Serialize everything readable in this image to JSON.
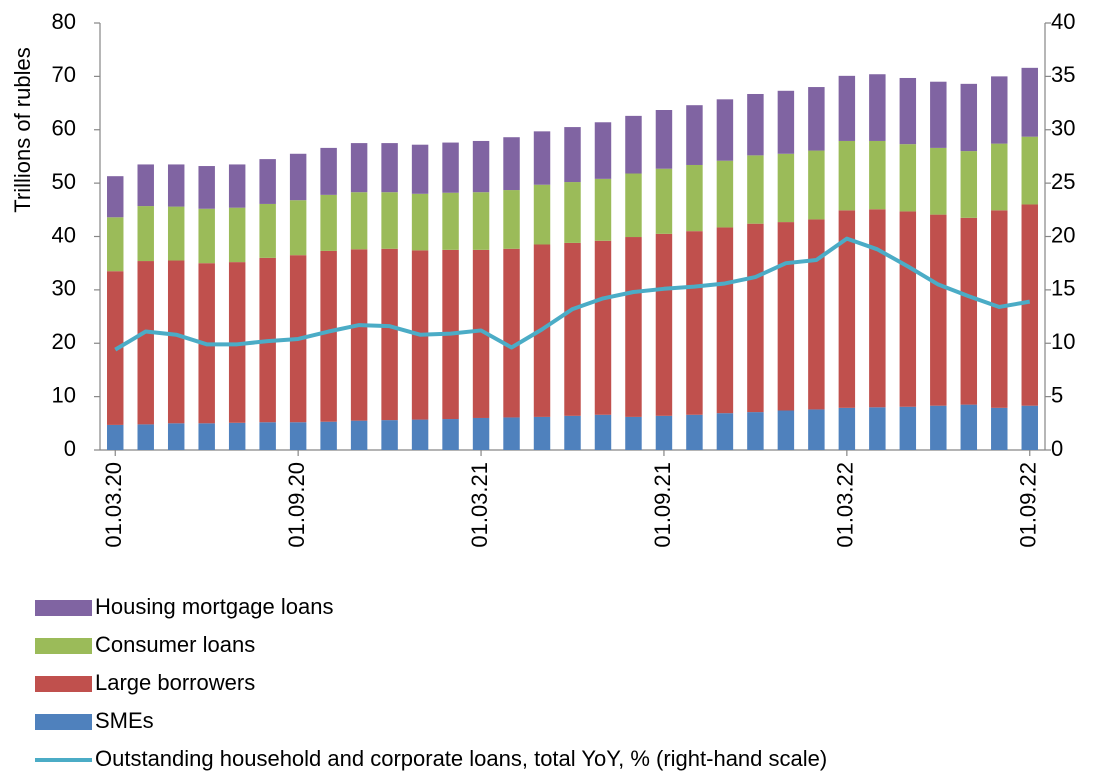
{
  "chart_data": {
    "type": "bar",
    "y_label": "Trillions of rubles",
    "categories": [
      "01.03.20",
      null,
      null,
      null,
      null,
      null,
      "01.09.20",
      null,
      null,
      null,
      null,
      null,
      "01.03.21",
      null,
      null,
      null,
      null,
      null,
      "01.09.21",
      null,
      null,
      null,
      null,
      null,
      "01.03.22",
      null,
      null,
      null,
      null,
      null,
      "01.09.22"
    ],
    "stacked": true,
    "series": [
      {
        "name": "SMEs",
        "color": "#4f81bd",
        "values": [
          4.7,
          4.8,
          5.0,
          5.0,
          5.1,
          5.2,
          5.2,
          5.3,
          5.5,
          5.6,
          5.7,
          5.8,
          6.0,
          6.1,
          6.2,
          6.4,
          6.6,
          6.2,
          6.4,
          6.6,
          6.9,
          7.1,
          7.4,
          7.6,
          7.9,
          8.0,
          8.1,
          8.3,
          8.5,
          7.9,
          8.3
        ]
      },
      {
        "name": "Large borrowers",
        "color": "#c0504d",
        "values": [
          28.8,
          30.6,
          30.5,
          30.0,
          30.1,
          30.8,
          31.3,
          32.0,
          32.1,
          32.1,
          31.7,
          31.7,
          31.5,
          31.6,
          32.3,
          32.4,
          32.6,
          33.7,
          34.1,
          34.4,
          34.8,
          35.3,
          35.3,
          35.6,
          37.0,
          37.1,
          36.6,
          35.8,
          35.0,
          37.0,
          37.7
        ]
      },
      {
        "name": "Consumer loans",
        "color": "#9bbb59",
        "values": [
          10.1,
          10.3,
          10.1,
          10.2,
          10.2,
          10.1,
          10.3,
          10.5,
          10.7,
          10.6,
          10.6,
          10.7,
          10.8,
          11.0,
          11.2,
          11.4,
          11.6,
          11.9,
          12.2,
          12.4,
          12.5,
          12.8,
          12.8,
          12.9,
          13.0,
          12.8,
          12.6,
          12.5,
          12.5,
          12.5,
          12.7
        ]
      },
      {
        "name": "Housing mortgage loans",
        "color": "#8064a2",
        "values": [
          7.7,
          7.8,
          7.9,
          8.0,
          8.1,
          8.4,
          8.7,
          8.8,
          9.2,
          9.2,
          9.2,
          9.4,
          9.6,
          9.9,
          10.0,
          10.3,
          10.6,
          10.8,
          11.0,
          11.2,
          11.5,
          11.5,
          11.8,
          11.9,
          12.2,
          12.5,
          12.4,
          12.4,
          12.6,
          12.6,
          12.9
        ]
      },
      {
        "name": "Outstanding household and corporate loans, total YoY, % (right-hand scale)",
        "color": "#4bacc6",
        "type": "line",
        "axis": "y2",
        "values": [
          9.4,
          11.1,
          10.8,
          9.9,
          9.9,
          10.2,
          10.4,
          11.1,
          11.7,
          11.6,
          10.8,
          10.9,
          11.2,
          9.6,
          11.3,
          13.2,
          14.2,
          14.8,
          15.1,
          15.3,
          15.6,
          16.2,
          17.5,
          17.8,
          19.8,
          18.8,
          17.2,
          15.5,
          14.4,
          13.4,
          13.9
        ]
      }
    ],
    "ylim": [
      0,
      80
    ],
    "yticks": [
      0,
      10,
      20,
      30,
      40,
      50,
      60,
      70,
      80
    ],
    "y2lim": [
      0,
      40
    ],
    "y2ticks": [
      0,
      5,
      10,
      15,
      20,
      25,
      30,
      35,
      40
    ],
    "grid": false
  }
}
